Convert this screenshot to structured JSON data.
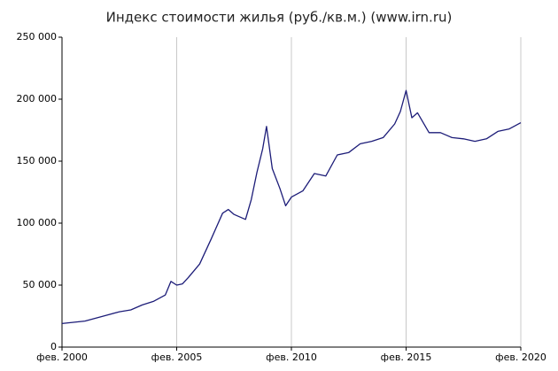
{
  "chart_data": {
    "type": "line",
    "title": "Индекс стоимости жилья (руб./кв.м.) (www.irn.ru)",
    "x": [
      "2000-02",
      "2001-02",
      "2002-02",
      "2002-08",
      "2003-02",
      "2003-08",
      "2004-02",
      "2004-08",
      "2004-11",
      "2005-02",
      "2005-05",
      "2005-08",
      "2006-02",
      "2006-08",
      "2007-02",
      "2007-05",
      "2007-08",
      "2008-02",
      "2008-05",
      "2008-08",
      "2008-11",
      "2009-01",
      "2009-04",
      "2009-08",
      "2009-11",
      "2010-02",
      "2010-08",
      "2011-02",
      "2011-08",
      "2012-02",
      "2012-08",
      "2013-02",
      "2013-08",
      "2014-02",
      "2014-08",
      "2014-11",
      "2015-02",
      "2015-05",
      "2015-08",
      "2016-02",
      "2016-08",
      "2017-02",
      "2017-08",
      "2018-02",
      "2018-08",
      "2019-02",
      "2019-08",
      "2020-02"
    ],
    "values": [
      19000,
      21000,
      26000,
      28500,
      30000,
      34000,
      37000,
      42000,
      53000,
      50000,
      51000,
      56000,
      67000,
      87000,
      108000,
      111000,
      107000,
      103000,
      119000,
      141000,
      160000,
      178000,
      144000,
      128000,
      114000,
      121000,
      126000,
      140000,
      138000,
      155000,
      157000,
      164000,
      166000,
      169000,
      180000,
      190000,
      207000,
      185000,
      189000,
      173000,
      173000,
      169000,
      168000,
      166000,
      168000,
      174000,
      176000,
      181000
    ],
    "color": "#1c1c78",
    "xlim": [
      "2000-02",
      "2020-02"
    ],
    "xticks": [
      {
        "value": "2000-02",
        "label": "фев. 2000"
      },
      {
        "value": "2005-02",
        "label": "фев. 2005"
      },
      {
        "value": "2010-02",
        "label": "фев. 2010"
      },
      {
        "value": "2015-02",
        "label": "фев. 2015"
      },
      {
        "value": "2020-02",
        "label": "фев. 2020"
      }
    ],
    "ylim": [
      0,
      250000
    ],
    "yticks": [
      0,
      {
        "value": 50000,
        "label": "50 000"
      },
      {
        "value": 100000,
        "label": "100 000"
      },
      {
        "value": 150000,
        "label": "150 000"
      },
      {
        "value": 200000,
        "label": "200 000"
      },
      {
        "value": 250000,
        "label": "250 000"
      }
    ],
    "grid": true
  }
}
